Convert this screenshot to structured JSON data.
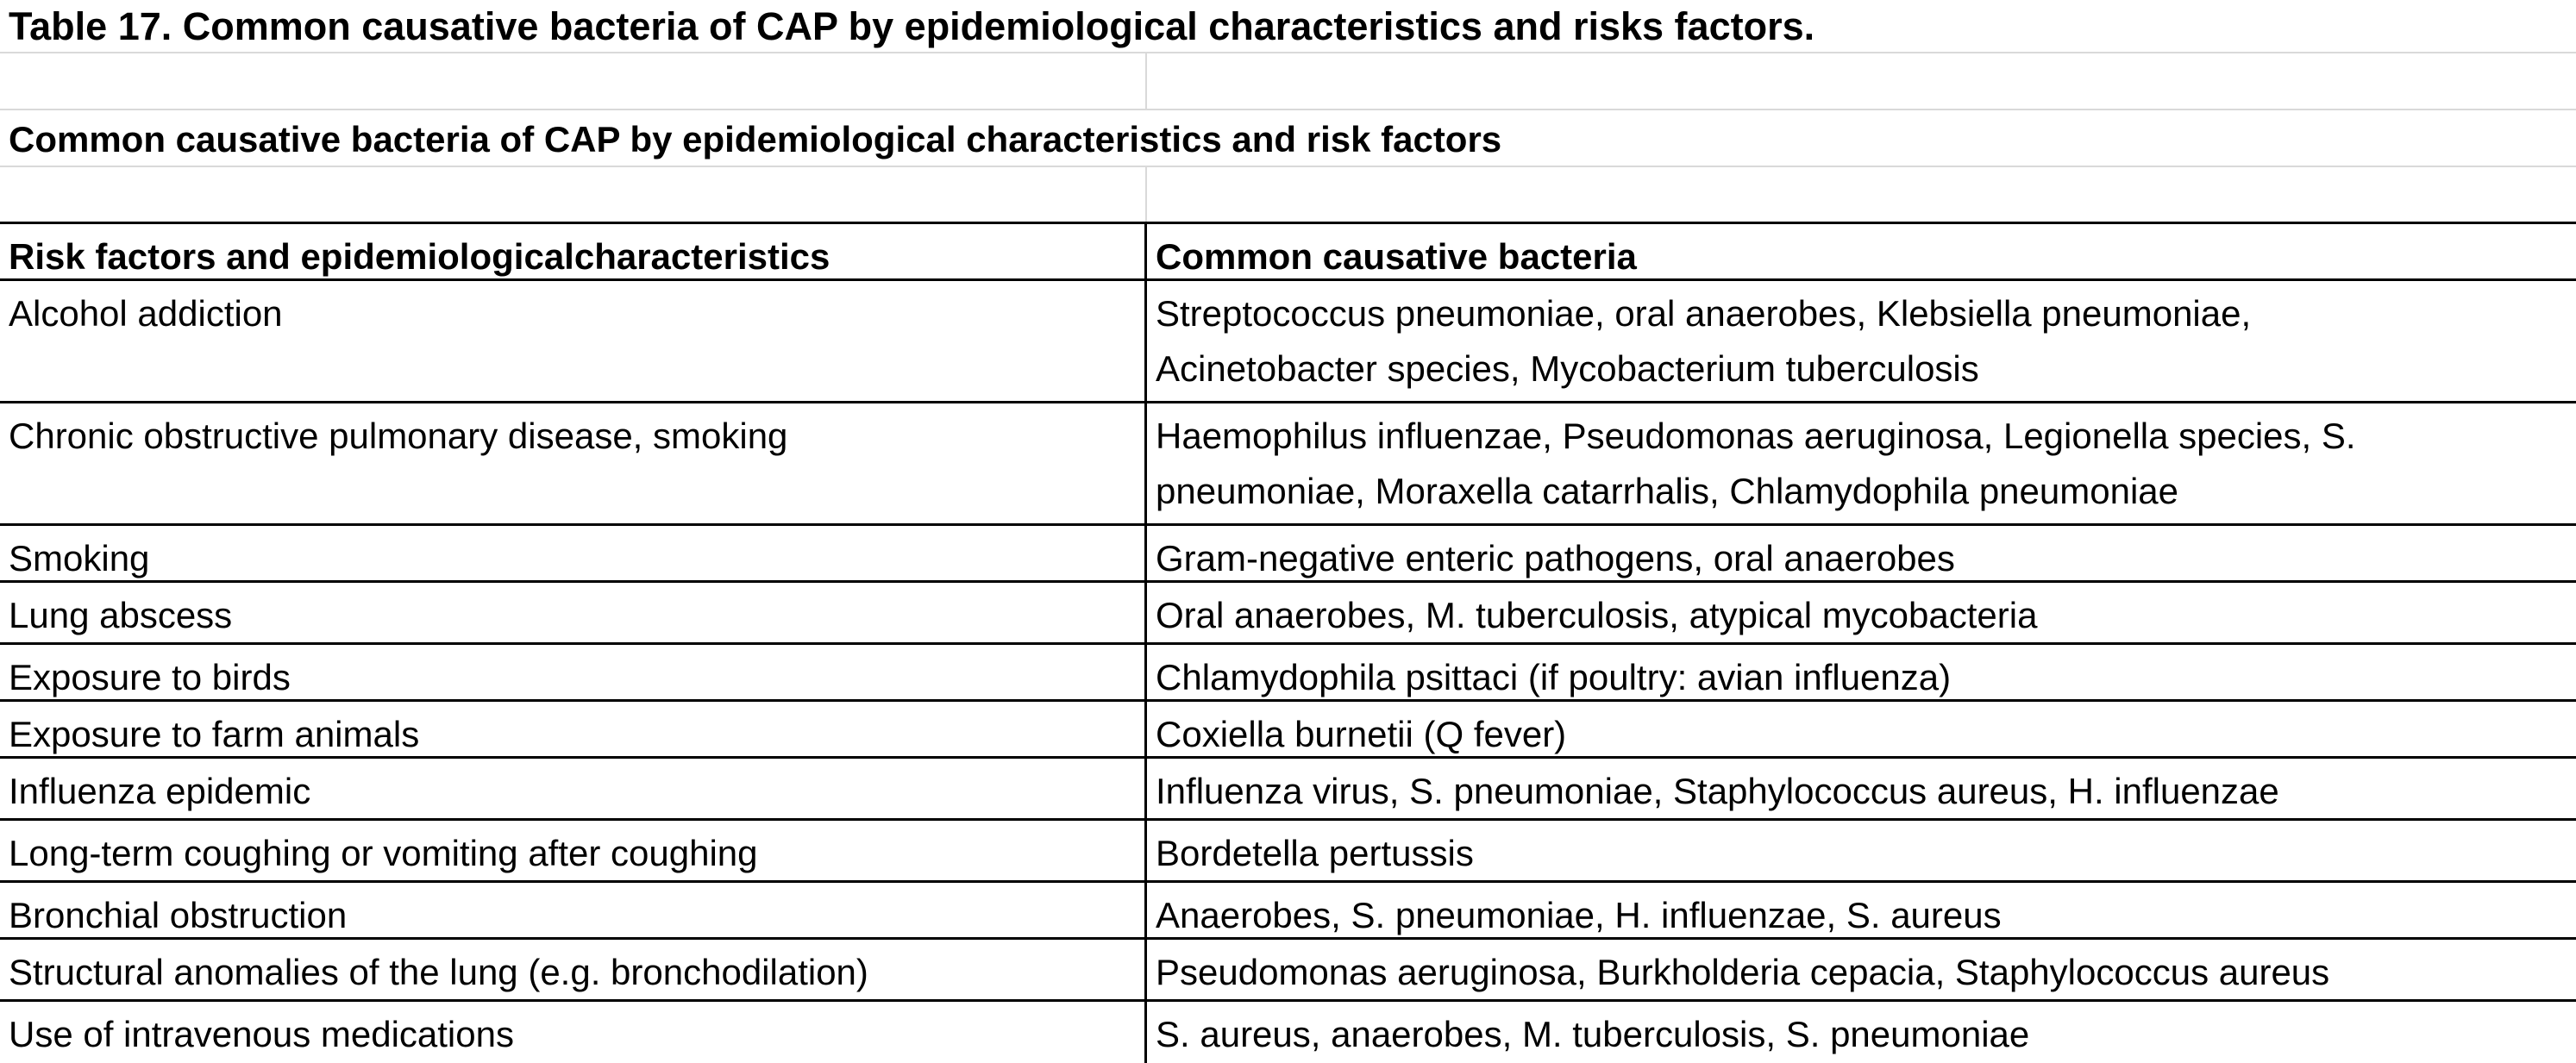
{
  "title": "Table 17. Common causative bacteria of CAP by epidemiological characteristics and risks factors.",
  "heading": "Common causative bacteria of CAP by epidemiological characteristics and risk factors",
  "columns": {
    "risk": "Risk factors and epidemiologicalcharacteristics",
    "bacteria": "Common causative bacteria"
  },
  "rows": [
    {
      "risk": "Alcohol addiction",
      "bacteria_lines": [
        "Streptococcus pneumoniae, oral anaerobes, Klebsiella pneumoniae,",
        "Acinetobacter species, Mycobacterium tuberculosis"
      ]
    },
    {
      "risk": "Chronic obstructive pulmonary disease, smoking",
      "bacteria_lines": [
        "Haemophilus influenzae, Pseudomonas aeruginosa, Legionella species, S.",
        "pneumoniae, Moraxella catarrhalis, Chlamydophila pneumoniae"
      ]
    },
    {
      "risk": "Smoking",
      "bacteria_lines": [
        "Gram-negative enteric pathogens, oral anaerobes"
      ]
    },
    {
      "risk": "Lung abscess",
      "bacteria_lines": [
        "Oral anaerobes, M. tuberculosis, atypical mycobacteria"
      ]
    },
    {
      "risk": "Exposure to birds",
      "bacteria_lines": [
        "Chlamydophila psittaci (if poultry: avian influenza)"
      ]
    },
    {
      "risk": "Exposure to farm animals",
      "bacteria_lines": [
        "Coxiella burnetii (Q fever)"
      ]
    },
    {
      "risk": "Influenza epidemic",
      "bacteria_lines": [
        "Influenza virus, S. pneumoniae, Staphylococcus aureus, H. influenzae"
      ]
    },
    {
      "risk": "Long-term coughing or vomiting after coughing",
      "bacteria_lines": [
        "Bordetella pertussis"
      ]
    },
    {
      "risk": "Bronchial obstruction",
      "bacteria_lines": [
        "Anaerobes, S. pneumoniae, H. influenzae, S. aureus"
      ]
    },
    {
      "risk": "Structural anomalies of the lung (e.g. bronchodilation)",
      "bacteria_lines": [
        "Pseudomonas aeruginosa, Burkholderia cepacia, Staphylococcus aureus"
      ]
    },
    {
      "risk": "Use of intravenous medications",
      "bacteria_lines": [
        "S. aureus, anaerobes, M. tuberculosis, S. pneumoniae"
      ]
    }
  ]
}
